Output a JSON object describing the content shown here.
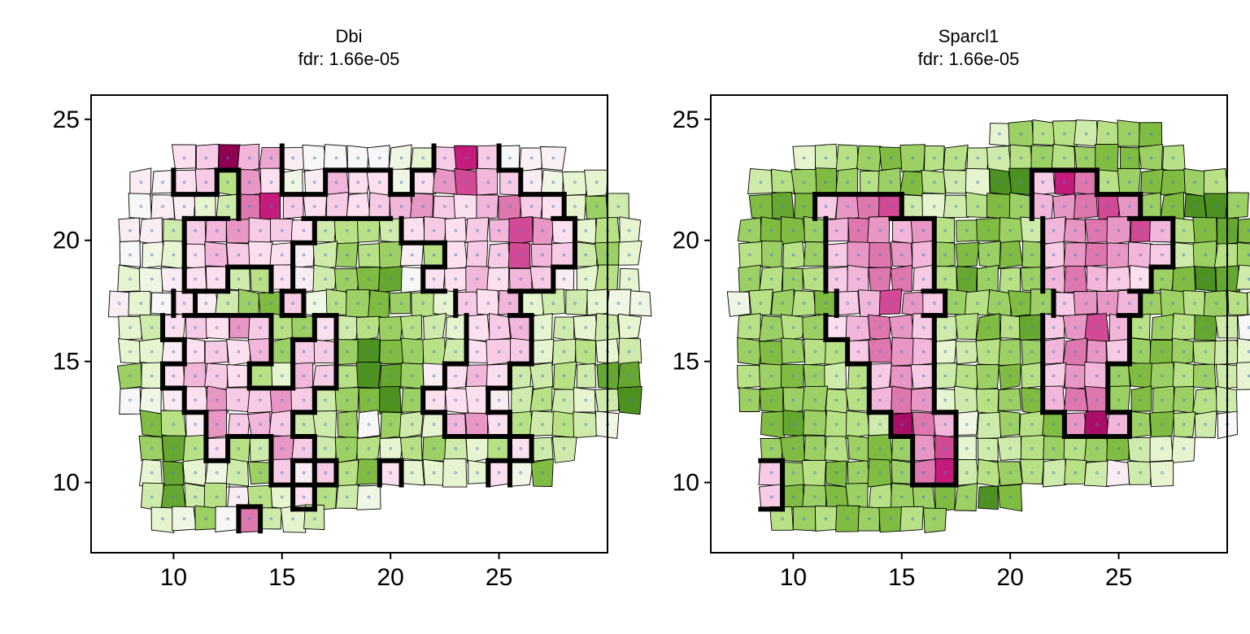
{
  "figure": {
    "background": "#ffffff"
  },
  "colormap": {
    "name": "PiYG",
    "stops": [
      "#276419",
      "#4d9221",
      "#7fbc41",
      "#b8e186",
      "#e6f5d0",
      "#f7f7f7",
      "#fde0ef",
      "#f1b6da",
      "#de77ae",
      "#c51b7d",
      "#8e0152"
    ]
  },
  "chart_data": [
    {
      "type": "heatmap",
      "subtype": "voronoi-spatial",
      "title_lines": [
        "Dbi",
        "fdr: 1.66e-05"
      ],
      "xlim": [
        6.2,
        30.0
      ],
      "ylim": [
        7.1,
        26.0
      ],
      "xticks": [
        10,
        15,
        20,
        25
      ],
      "yticks": [
        10,
        15,
        20,
        25
      ],
      "rows": [
        {
          "y": 23.4,
          "x0": 10.5,
          "v": [
            0.2,
            0.3,
            1.0,
            0.4,
            0.45,
            0.1,
            0.0,
            0.0,
            0.0,
            0.0,
            -0.1,
            -0.2,
            0.3,
            0.8,
            0.3,
            0.0,
            0.05,
            0.05
          ]
        },
        {
          "y": 22.4,
          "x0": 8.5,
          "v": [
            0.1,
            0.05,
            0.2,
            0.3,
            -0.4,
            0.5,
            0.2,
            -0.1,
            0.1,
            0.4,
            0.2,
            0.2,
            -0.1,
            0.2,
            0.5,
            0.7,
            0.4,
            0.3,
            0.1,
            -0.1,
            -0.2,
            -0.2
          ]
        },
        {
          "y": 21.4,
          "x0": 8.5,
          "v": [
            0.0,
            0.1,
            0.1,
            -0.2,
            -0.3,
            0.6,
            0.8,
            0.3,
            0.2,
            0.3,
            0.2,
            0.3,
            0.4,
            0.5,
            0.3,
            0.2,
            0.4,
            0.6,
            0.3,
            0.2,
            -0.2,
            -0.5,
            -0.3
          ]
        },
        {
          "y": 20.4,
          "x0": 8.0,
          "v": [
            0.1,
            0.1,
            -0.3,
            0.3,
            0.4,
            0.5,
            0.3,
            0.3,
            0.2,
            -0.3,
            -0.4,
            -0.4,
            -0.3,
            0.2,
            0.3,
            0.2,
            0.3,
            0.4,
            0.7,
            0.5,
            0.2,
            -0.2,
            -0.4,
            -0.2
          ]
        },
        {
          "y": 19.4,
          "x0": 8.0,
          "v": [
            0.0,
            -0.1,
            -0.2,
            0.2,
            0.4,
            0.3,
            0.2,
            0.2,
            0.1,
            -0.3,
            -0.5,
            -0.4,
            -0.5,
            0.1,
            -0.4,
            0.2,
            0.3,
            0.3,
            0.7,
            0.4,
            0.3,
            -0.3,
            -0.5,
            -0.2
          ]
        },
        {
          "y": 18.4,
          "x0": 8.0,
          "v": [
            -0.2,
            -0.1,
            0.1,
            0.2,
            0.2,
            -0.3,
            -0.4,
            0.2,
            0.1,
            -0.3,
            -0.5,
            -0.6,
            -0.7,
            0.0,
            0.2,
            0.2,
            0.4,
            0.2,
            0.4,
            0.3,
            0.1,
            -0.2,
            -0.4,
            -0.2
          ]
        },
        {
          "y": 17.4,
          "x0": 7.5,
          "v": [
            0.1,
            -0.2,
            0.0,
            0.2,
            0.1,
            -0.3,
            -0.5,
            -0.6,
            0.3,
            -0.1,
            -0.4,
            -0.5,
            -0.6,
            -0.5,
            -0.4,
            -0.2,
            0.3,
            0.2,
            0.4,
            -0.2,
            -0.3,
            -0.3,
            -0.2,
            -0.1,
            -0.1
          ]
        },
        {
          "y": 16.4,
          "x0": 8.0,
          "v": [
            -0.2,
            -0.3,
            0.2,
            0.3,
            0.2,
            0.5,
            0.3,
            -0.4,
            -0.5,
            0.2,
            -0.3,
            -0.4,
            -0.5,
            -0.4,
            -0.3,
            -0.2,
            0.2,
            0.3,
            0.4,
            -0.2,
            -0.3,
            -0.2,
            -0.3,
            -0.2
          ]
        },
        {
          "y": 15.4,
          "x0": 8.0,
          "v": [
            -0.2,
            -0.2,
            0.1,
            0.2,
            0.3,
            0.2,
            0.4,
            -0.5,
            0.3,
            0.3,
            -0.5,
            -0.8,
            -0.6,
            -0.5,
            -0.4,
            -0.3,
            0.2,
            0.3,
            0.3,
            -0.2,
            -0.3,
            -0.4,
            -0.2,
            -0.3
          ]
        },
        {
          "y": 14.4,
          "x0": 8.0,
          "v": [
            -0.5,
            -0.2,
            0.2,
            0.4,
            0.3,
            0.2,
            -0.4,
            -0.2,
            0.4,
            0.3,
            -0.4,
            -0.8,
            -0.7,
            -0.5,
            0.1,
            0.2,
            0.4,
            0.2,
            -0.3,
            -0.3,
            -0.4,
            -0.3,
            -0.7,
            -0.7
          ]
        },
        {
          "y": 13.4,
          "x0": 8.0,
          "v": [
            0.0,
            -0.1,
            0.1,
            0.2,
            0.5,
            0.3,
            0.3,
            0.5,
            0.3,
            -0.3,
            -0.5,
            -0.6,
            -0.8,
            -0.5,
            0.2,
            0.2,
            0.2,
            0.1,
            -0.3,
            -0.4,
            -0.3,
            -0.2,
            -0.3,
            -0.8
          ]
        },
        {
          "y": 12.4,
          "x0": 9.0,
          "v": [
            -0.6,
            -0.4,
            0.1,
            0.5,
            0.3,
            0.4,
            0.3,
            -0.3,
            -0.3,
            -0.5,
            0.0,
            -0.5,
            -0.3,
            -0.2,
            0.4,
            0.5,
            0.2,
            -0.4,
            -0.3,
            -0.4,
            -0.3,
            -0.1
          ]
        },
        {
          "y": 11.4,
          "x0": 9.0,
          "v": [
            -0.5,
            -0.7,
            -0.4,
            0.2,
            -0.4,
            -0.3,
            0.5,
            0.3,
            -0.3,
            -0.5,
            -0.4,
            -0.2,
            -0.4,
            -0.5,
            -0.3,
            -0.2,
            -0.4,
            0.2,
            -0.3,
            -0.3
          ]
        },
        {
          "y": 10.4,
          "x0": 9.0,
          "v": [
            -0.2,
            -0.7,
            -0.2,
            -0.1,
            -0.3,
            -0.5,
            0.3,
            0.1,
            0.3,
            -0.4,
            -0.6,
            0.2,
            -0.2,
            -0.2,
            -0.2,
            -0.2,
            0.2,
            -0.1,
            -0.6
          ]
        },
        {
          "y": 9.4,
          "x0": 9.0,
          "v": [
            -0.3,
            -0.7,
            -0.3,
            -0.4,
            0.1,
            -0.4,
            -0.2,
            0.2,
            -0.4,
            -0.3,
            -0.1
          ]
        },
        {
          "y": 8.5,
          "x0": 9.5,
          "v": [
            -0.2,
            -0.1,
            -0.5,
            0.0,
            0.6,
            -0.3,
            -0.2,
            -0.3
          ]
        }
      ],
      "boundary_threshold": 0.15
    },
    {
      "type": "heatmap",
      "subtype": "voronoi-spatial",
      "title_lines": [
        "Sparcl1",
        "fdr: 1.66e-05"
      ],
      "xlim": [
        6.2,
        30.0
      ],
      "ylim": [
        7.1,
        26.0
      ],
      "xticks": [
        10,
        15,
        20,
        25
      ],
      "yticks": [
        10,
        15,
        20,
        25
      ],
      "rows": [
        {
          "y": 24.4,
          "x0": 19.5,
          "v": [
            -0.2,
            -0.5,
            -0.4,
            -0.4,
            -0.3,
            -0.4,
            -0.5,
            -0.6
          ]
        },
        {
          "y": 23.4,
          "x0": 10.5,
          "v": [
            -0.2,
            -0.3,
            -0.4,
            -0.5,
            -0.6,
            -0.5,
            -0.4,
            -0.4,
            -0.3,
            -0.3,
            -0.4,
            -0.5,
            -0.4,
            -0.5,
            -0.6,
            -0.6,
            -0.5,
            -0.4
          ]
        },
        {
          "y": 22.4,
          "x0": 8.5,
          "v": [
            -0.3,
            -0.4,
            -0.5,
            -0.6,
            -0.5,
            -0.4,
            -0.5,
            -0.6,
            -0.4,
            -0.3,
            -0.2,
            -0.8,
            -0.8,
            0.3,
            0.8,
            0.6,
            -0.4,
            -0.5,
            -0.6,
            -0.6,
            -0.5,
            -0.4
          ]
        },
        {
          "y": 21.4,
          "x0": 8.5,
          "v": [
            -0.6,
            -0.7,
            -0.6,
            0.3,
            0.5,
            0.6,
            0.7,
            -0.3,
            -0.2,
            -0.3,
            -0.4,
            -0.6,
            -0.5,
            0.4,
            0.5,
            0.6,
            0.7,
            0.5,
            -0.5,
            -0.6,
            -0.8,
            -0.8,
            -0.5
          ]
        },
        {
          "y": 20.4,
          "x0": 8.0,
          "v": [
            -0.5,
            -0.6,
            -0.6,
            -0.5,
            0.4,
            0.6,
            0.5,
            0.4,
            0.5,
            -0.4,
            -0.5,
            -0.6,
            -0.5,
            -0.3,
            0.4,
            0.5,
            0.6,
            0.5,
            0.7,
            0.4,
            -0.4,
            -0.6,
            -0.7,
            -0.6
          ]
        },
        {
          "y": 19.4,
          "x0": 8.0,
          "v": [
            -0.4,
            -0.5,
            -0.4,
            -0.5,
            0.3,
            0.5,
            0.6,
            0.5,
            0.4,
            -0.5,
            -0.6,
            -0.5,
            -0.6,
            -0.5,
            0.3,
            0.5,
            0.6,
            0.5,
            0.4,
            0.3,
            -0.3,
            -0.5,
            -0.4,
            -0.5
          ]
        },
        {
          "y": 18.4,
          "x0": 8.0,
          "v": [
            -0.5,
            -0.4,
            -0.5,
            -0.4,
            0.3,
            0.4,
            0.6,
            0.6,
            0.3,
            -0.4,
            -0.7,
            -0.5,
            -0.4,
            -0.5,
            0.4,
            0.6,
            0.4,
            0.3,
            0.2,
            -0.5,
            -0.6,
            -0.8,
            -0.7,
            -0.3
          ]
        },
        {
          "y": 17.4,
          "x0": 7.5,
          "v": [
            -0.1,
            -0.4,
            -0.5,
            -0.4,
            -0.6,
            0.3,
            0.4,
            0.7,
            0.5,
            0.3,
            -0.5,
            -0.4,
            -0.5,
            -0.6,
            -0.5,
            0.3,
            0.5,
            0.5,
            0.4,
            -0.5,
            -0.5,
            -0.4,
            -0.5,
            -0.4,
            -0.3
          ]
        },
        {
          "y": 16.4,
          "x0": 8.0,
          "v": [
            -0.4,
            -0.5,
            -0.4,
            -0.5,
            0.2,
            0.4,
            0.6,
            0.5,
            0.3,
            -0.3,
            -0.4,
            -0.6,
            -0.4,
            -0.7,
            0.3,
            0.5,
            0.7,
            0.4,
            -0.4,
            -0.5,
            -0.4,
            -0.7,
            -0.3,
            0.0
          ]
        },
        {
          "y": 15.4,
          "x0": 8.0,
          "v": [
            -0.5,
            -0.6,
            -0.5,
            -0.4,
            -0.4,
            0.3,
            0.6,
            0.5,
            0.4,
            -0.2,
            -0.3,
            -0.4,
            -0.5,
            -0.5,
            0.4,
            0.6,
            0.5,
            0.3,
            -0.5,
            -0.6,
            -0.5,
            -0.4,
            -0.3,
            -0.2
          ]
        },
        {
          "y": 14.4,
          "x0": 8.0,
          "v": [
            -0.4,
            -0.5,
            -0.6,
            -0.5,
            -0.3,
            -0.4,
            0.3,
            0.5,
            0.3,
            -0.3,
            -0.4,
            -0.5,
            -0.6,
            -0.4,
            0.3,
            0.5,
            0.4,
            -0.5,
            -0.6,
            -0.5,
            -0.4,
            -0.5,
            -0.3,
            -0.2
          ]
        },
        {
          "y": 13.4,
          "x0": 8.0,
          "v": [
            -0.5,
            -0.6,
            -0.5,
            -0.5,
            -0.4,
            -0.4,
            0.4,
            0.6,
            0.5,
            -0.2,
            -0.3,
            -0.4,
            -0.5,
            -0.6,
            0.4,
            0.6,
            0.6,
            -0.5,
            -0.6,
            -0.5,
            -0.5,
            -0.4,
            -0.3
          ]
        },
        {
          "y": 12.4,
          "x0": 9.0,
          "v": [
            -0.6,
            -0.7,
            -0.5,
            -0.4,
            -0.4,
            -0.3,
            0.9,
            0.6,
            0.4,
            -0.1,
            -0.3,
            -0.5,
            -0.4,
            -0.6,
            0.5,
            0.9,
            0.4,
            -0.5,
            -0.6,
            -0.4,
            -0.3,
            0.0
          ]
        },
        {
          "y": 11.4,
          "x0": 9.0,
          "v": [
            -0.5,
            -0.6,
            -0.5,
            -0.4,
            -0.5,
            -0.6,
            -0.5,
            0.5,
            0.7,
            -0.2,
            -0.3,
            -0.3,
            -0.4,
            -0.5,
            -0.4,
            -0.5,
            -0.6,
            -0.3,
            -0.2,
            -0.2
          ]
        },
        {
          "y": 10.4,
          "x0": 9.0,
          "v": [
            0.3,
            -0.5,
            -0.4,
            -0.6,
            -0.5,
            -0.6,
            -0.5,
            0.6,
            0.8,
            -0.3,
            -0.4,
            -0.5,
            -0.4,
            -0.3,
            -0.4,
            -0.3,
            0.1,
            -0.3,
            -0.2
          ]
        },
        {
          "y": 9.4,
          "x0": 9.0,
          "v": [
            0.3,
            -0.6,
            -0.5,
            -0.6,
            -0.5,
            -0.4,
            -0.5,
            -0.5,
            -0.6,
            -0.5,
            -0.8,
            -0.6
          ]
        },
        {
          "y": 8.5,
          "x0": 9.5,
          "v": [
            -0.4,
            -0.5,
            -0.4,
            -0.6,
            -0.5,
            -0.6,
            -0.4,
            -0.5
          ]
        }
      ],
      "boundary_threshold": 0.15
    }
  ]
}
